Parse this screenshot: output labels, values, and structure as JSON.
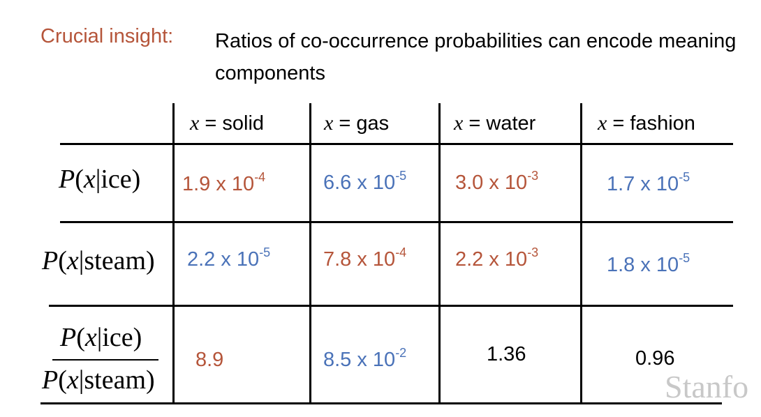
{
  "slide": {
    "insight_label": "Crucial insight:",
    "insight_text": "Ratios of co-occurrence probabilities can encode meaning components"
  },
  "table": {
    "header": [
      {
        "var": "x",
        "eq": " = solid"
      },
      {
        "var": "x",
        "eq": " = gas"
      },
      {
        "var": "x",
        "eq": " = water"
      },
      {
        "var": "x",
        "eq": " = fashion"
      }
    ],
    "rows": [
      {
        "label": {
          "P": "P",
          "open": "(",
          "x": "x",
          "bar": "|",
          "cond": "ice",
          "close": ")"
        },
        "cells": [
          {
            "mant": "1.9 x 10",
            "exp": "-4",
            "color": "#b5553a"
          },
          {
            "mant": "6.6 x 10",
            "exp": "-5",
            "color": "#4a72b8"
          },
          {
            "mant": "3.0 x 10",
            "exp": "-3",
            "color": "#b5553a"
          },
          {
            "mant": "1.7 x 10",
            "exp": "-5",
            "color": "#4a72b8"
          }
        ]
      },
      {
        "label": {
          "P": "P",
          "open": "(",
          "x": "x",
          "bar": "|",
          "cond": "steam",
          "close": ")"
        },
        "cells": [
          {
            "mant": "2.2 x 10",
            "exp": "-5",
            "color": "#4a72b8"
          },
          {
            "mant": "7.8 x 10",
            "exp": "-4",
            "color": "#b5553a"
          },
          {
            "mant": "2.2 x 10",
            "exp": "-3",
            "color": "#b5553a"
          },
          {
            "mant": "1.8 x 10",
            "exp": "-5",
            "color": "#4a72b8"
          }
        ]
      },
      {
        "label_num": {
          "P": "P",
          "open": "(",
          "x": "x",
          "bar": "|",
          "cond": "ice",
          "close": ")"
        },
        "label_den": {
          "P": "P",
          "open": "(",
          "x": "x",
          "bar": "|",
          "cond": "steam",
          "close": ")"
        },
        "cells": [
          {
            "mant": "8.9",
            "exp": "",
            "color": "#b5553a"
          },
          {
            "mant": "8.5 x 10",
            "exp": "-2",
            "color": "#4a72b8"
          },
          {
            "mant": "1.36",
            "exp": "",
            "color": "#000000"
          },
          {
            "mant": "0.96",
            "exp": "",
            "color": "#000000"
          }
        ]
      }
    ]
  },
  "watermark": "Stanfo"
}
